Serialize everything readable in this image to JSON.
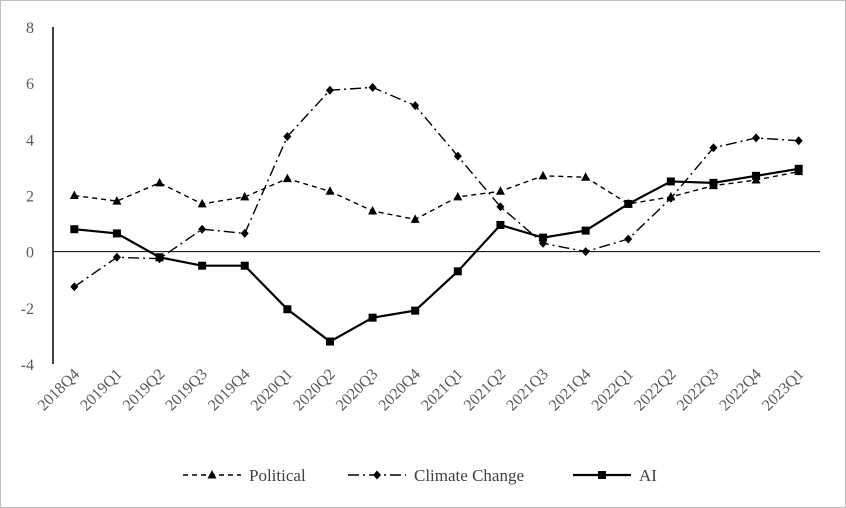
{
  "chart_data": {
    "type": "line",
    "title": "",
    "xlabel": "",
    "ylabel": "",
    "categories": [
      "2018Q4",
      "2019Q1",
      "2019Q2",
      "2019Q3",
      "2019Q4",
      "2020Q1",
      "2020Q2",
      "2020Q3",
      "2020Q4",
      "2021Q1",
      "2021Q2",
      "2021Q3",
      "2021Q4",
      "2022Q1",
      "2022Q2",
      "2022Q3",
      "2022Q4",
      "2023Q1"
    ],
    "ylim": [
      -4,
      8
    ],
    "yticks": [
      -4,
      -2,
      0,
      2,
      4,
      6,
      8
    ],
    "grid": false,
    "legend_position": "bottom",
    "series": [
      {
        "name": "Political",
        "line_style": "dashed",
        "marker": "triangle",
        "color": "#000000",
        "values": [
          2.0,
          1.8,
          2.45,
          1.7,
          1.95,
          2.6,
          2.15,
          1.45,
          1.15,
          1.95,
          2.15,
          2.7,
          2.65,
          1.7,
          1.95,
          2.35,
          2.55,
          2.85
        ]
      },
      {
        "name": "Climate Change",
        "line_style": "dash-dot",
        "marker": "diamond",
        "color": "#000000",
        "values": [
          -1.25,
          -0.2,
          -0.25,
          0.8,
          0.65,
          4.1,
          5.75,
          5.85,
          5.2,
          3.4,
          1.6,
          0.3,
          0.0,
          0.45,
          1.9,
          3.7,
          4.05,
          3.95
        ]
      },
      {
        "name": "AI",
        "line_style": "solid",
        "marker": "square",
        "color": "#000000",
        "values": [
          0.8,
          0.65,
          -0.2,
          -0.5,
          -0.5,
          -2.05,
          -3.2,
          -2.35,
          -2.1,
          -0.7,
          0.95,
          0.5,
          0.75,
          1.7,
          2.5,
          2.45,
          2.7,
          2.95
        ]
      }
    ]
  }
}
